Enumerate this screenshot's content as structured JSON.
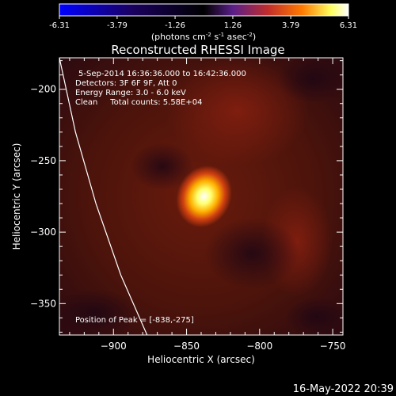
{
  "colorbar": {
    "ticks": [
      "-6.31",
      "-3.79",
      "-1.26",
      "1.26",
      "3.79",
      "6.31"
    ],
    "tick_values": [
      -6.31,
      -3.79,
      -1.26,
      1.26,
      3.79,
      6.31
    ],
    "range": [
      -6.31,
      6.31
    ],
    "units_main": "(photons cm",
    "units_sup1": "-2",
    "units_mid1": " s",
    "units_sup2": "-1",
    "units_mid2": " asec",
    "units_sup3": "-2",
    "units_end": ")",
    "colors": [
      "#0000ff",
      "#000000",
      "#5a1f8a",
      "#c02c2c",
      "#ff8a00",
      "#ffff60",
      "#ffffff"
    ]
  },
  "chart_data": {
    "type": "heatmap",
    "title": "Reconstructed RHESSI Image",
    "xlabel": "Heliocentric X (arcsec)",
    "ylabel": "Heliocentric Y (arcsec)",
    "xlim": [
      -937,
      -743
    ],
    "ylim": [
      -372,
      -178
    ],
    "x_ticks": [
      -900,
      -850,
      -800,
      -750
    ],
    "y_ticks": [
      -200,
      -250,
      -300,
      -350
    ],
    "x_tick_labels": [
      "−900",
      "−850",
      "−800",
      "−750"
    ],
    "y_tick_labels": [
      "−200",
      "−250",
      "−300",
      "−350"
    ],
    "peak": {
      "x": -838,
      "y": -275
    },
    "limb": [
      [
        -937,
        -178
      ],
      [
        -926,
        -230
      ],
      [
        -912,
        -280
      ],
      [
        -895,
        -330
      ],
      [
        -877,
        -372
      ]
    ],
    "annotations": [
      "5-Sep-2014 16:36:36.000 to 16:42:36.000",
      "Detectors: 3F 6F 9F, Att 0",
      "Energy Range: 3.0 - 6.0 keV",
      "Clean     Total counts: 5.58E+04",
      "Position of Peak = [-838,-275]"
    ],
    "grid": false
  },
  "footer": {
    "date": "16-May-2022 20:39"
  }
}
